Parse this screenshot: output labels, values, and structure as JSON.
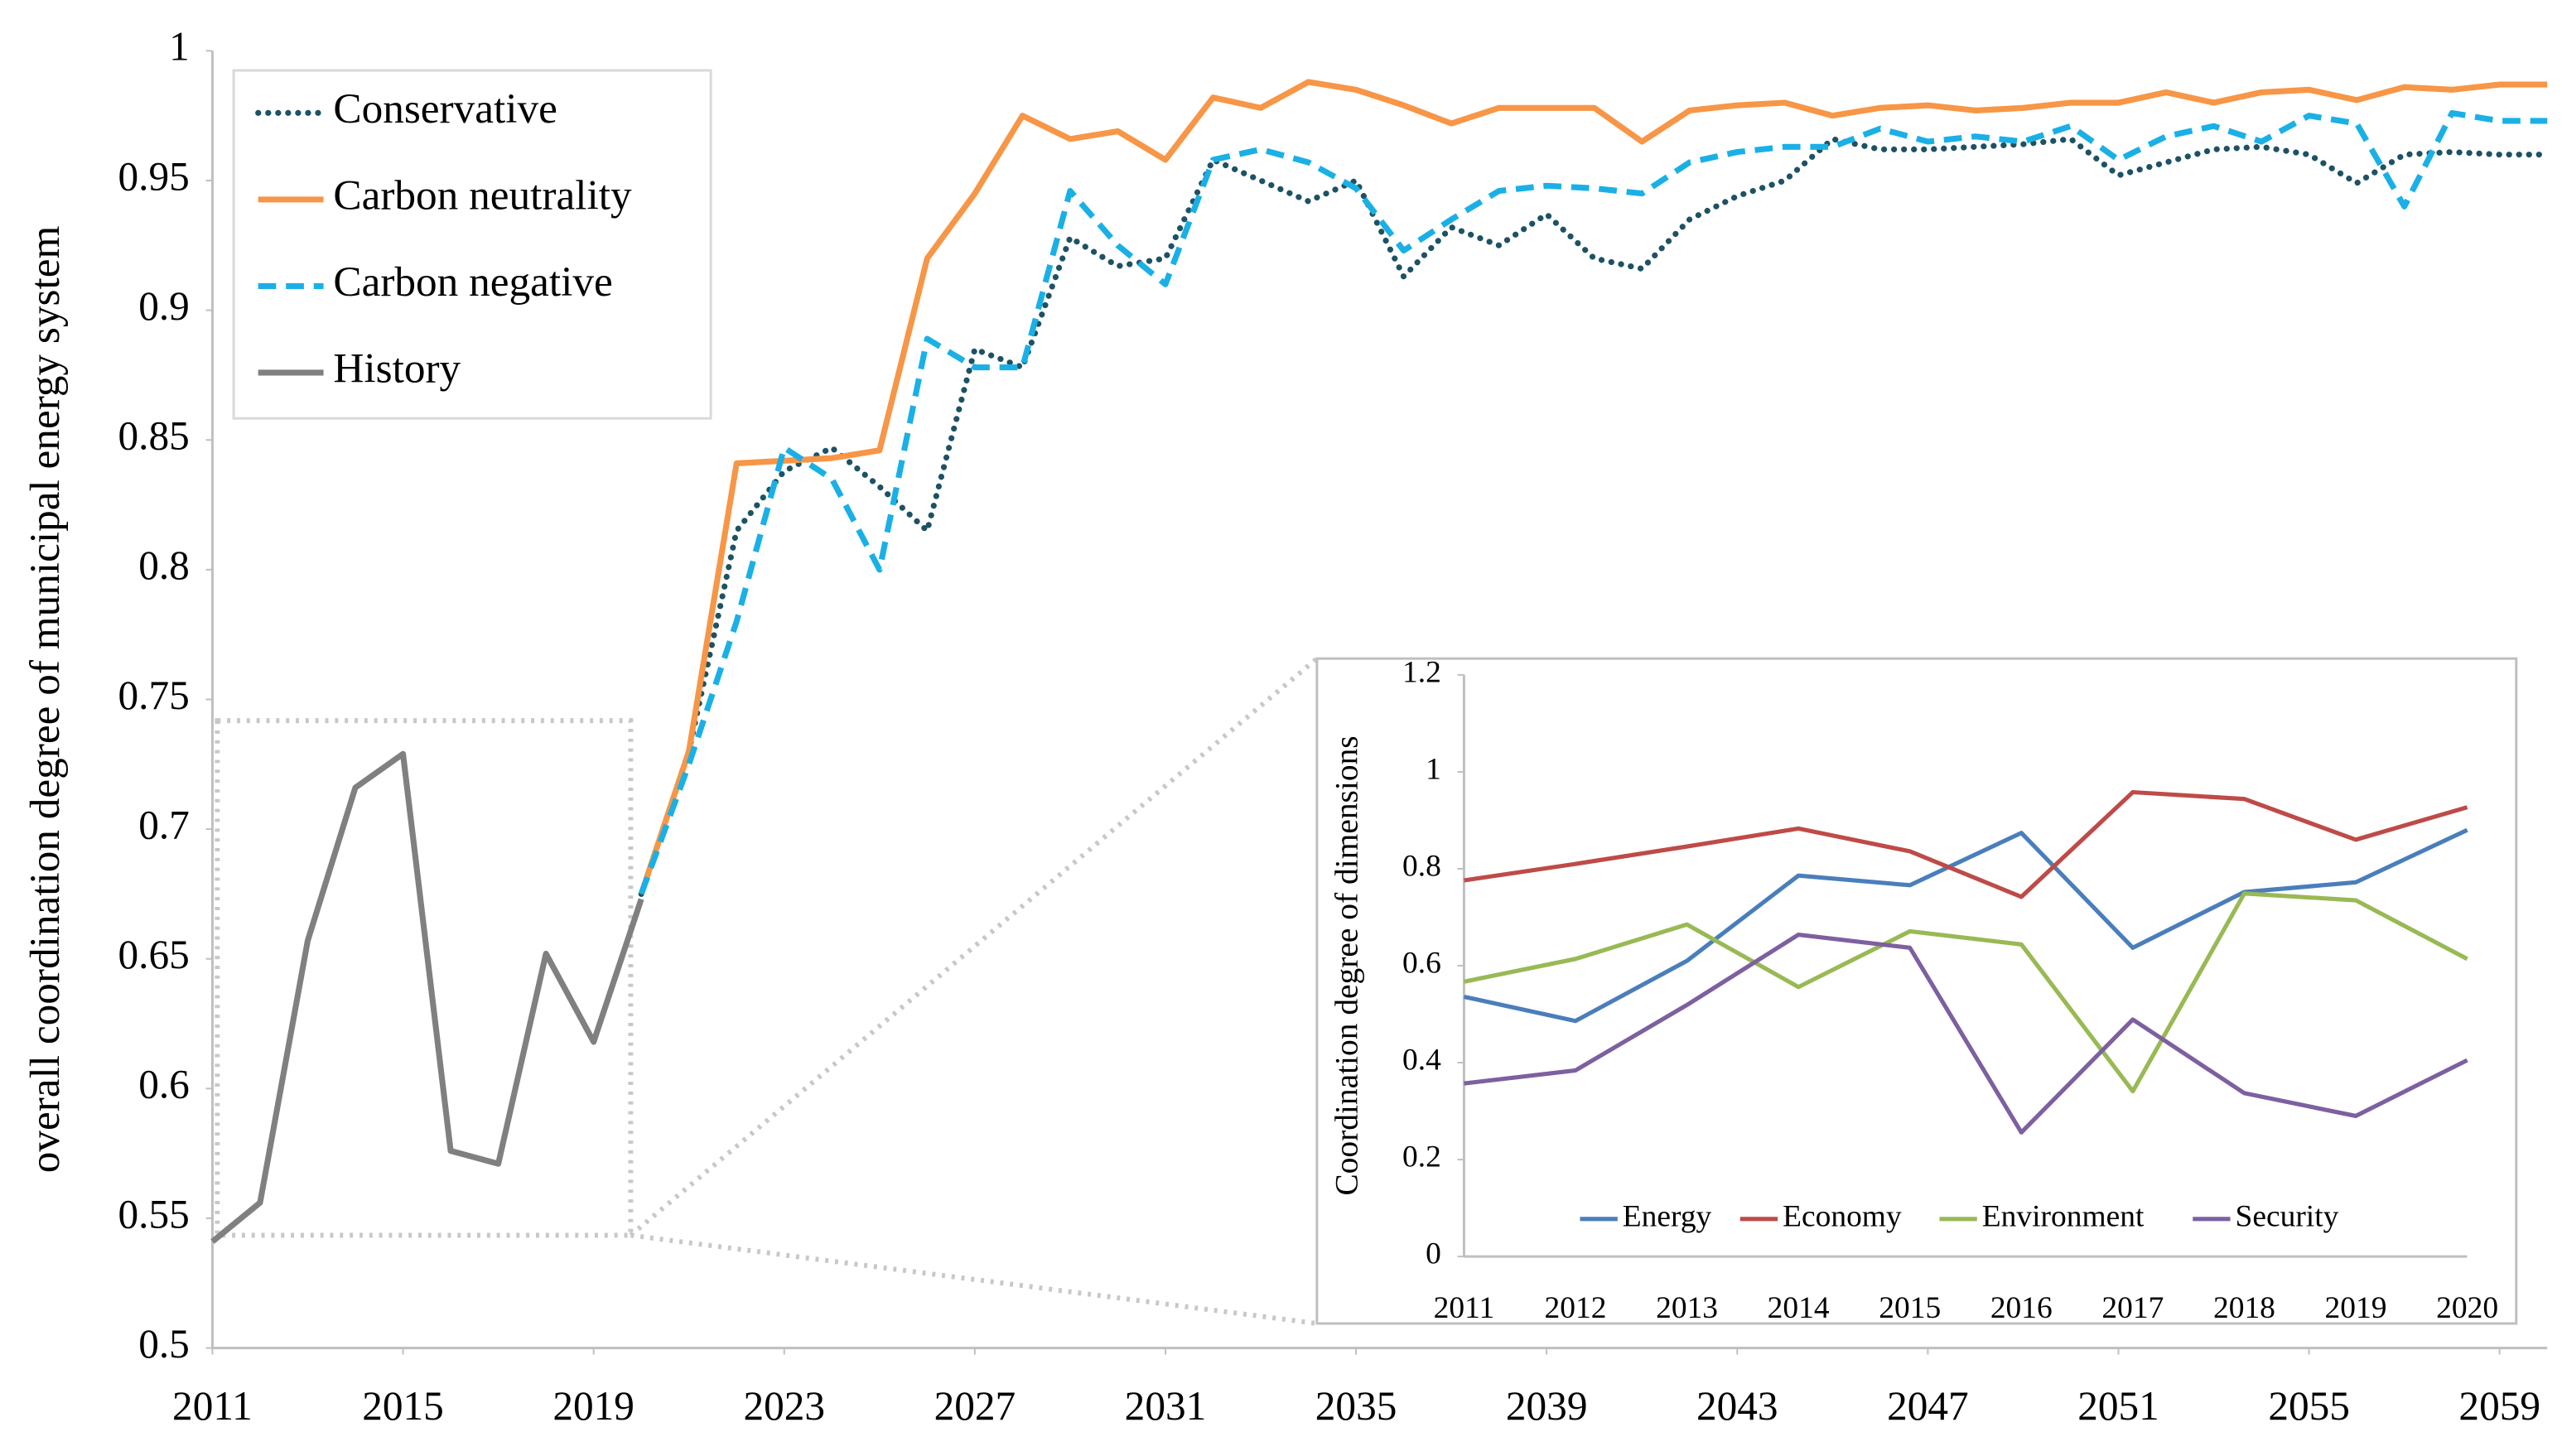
{
  "chart_data": [
    {
      "type": "line",
      "ylabel": "overall coordination degree of municipal energy system",
      "x": [
        2011,
        2012,
        2013,
        2014,
        2015,
        2016,
        2017,
        2018,
        2019,
        2020,
        2021,
        2022,
        2023,
        2024,
        2025,
        2026,
        2027,
        2028,
        2029,
        2030,
        2031,
        2032,
        2033,
        2034,
        2035,
        2036,
        2037,
        2038,
        2039,
        2040,
        2041,
        2042,
        2043,
        2044,
        2045,
        2046,
        2047,
        2048,
        2049,
        2050,
        2051,
        2052,
        2053,
        2054,
        2055,
        2056,
        2057,
        2058,
        2059,
        2060
      ],
      "xlim": [
        2011,
        2060
      ],
      "xticks": [
        2011,
        2015,
        2019,
        2023,
        2027,
        2031,
        2035,
        2039,
        2043,
        2047,
        2051,
        2055,
        2059
      ],
      "ylim": [
        0.5,
        1
      ],
      "yticks": [
        0.5,
        0.55,
        0.6,
        0.65,
        0.7,
        0.75,
        0.8,
        0.85,
        0.9,
        0.95,
        1
      ],
      "grid": false,
      "legend": "top-left",
      "series": [
        {
          "name": "Conservative",
          "color": "#1d5264",
          "style": "dotted",
          "values": [
            null,
            null,
            null,
            null,
            null,
            null,
            null,
            null,
            null,
            0.675,
            0.73,
            0.815,
            0.838,
            0.847,
            0.832,
            0.815,
            0.885,
            0.878,
            0.928,
            0.917,
            0.92,
            0.958,
            0.95,
            0.942,
            0.95,
            0.913,
            0.932,
            0.925,
            0.937,
            0.92,
            0.916,
            0.935,
            0.944,
            0.95,
            0.966,
            0.962,
            0.962,
            0.963,
            0.964,
            0.966,
            0.952,
            0.957,
            0.962,
            0.963,
            0.96,
            0.949,
            0.96,
            0.961,
            0.96,
            0.96
          ]
        },
        {
          "name": "Carbon neutrality",
          "color": "#f79646",
          "style": "solid",
          "values": [
            null,
            null,
            null,
            null,
            null,
            null,
            null,
            null,
            null,
            0.675,
            0.73,
            0.841,
            0.842,
            0.843,
            0.846,
            0.92,
            0.945,
            0.975,
            0.966,
            0.969,
            0.958,
            0.982,
            0.978,
            0.988,
            0.985,
            0.979,
            0.972,
            0.978,
            0.978,
            0.978,
            0.965,
            0.977,
            0.979,
            0.98,
            0.975,
            0.978,
            0.979,
            0.977,
            0.978,
            0.98,
            0.98,
            0.984,
            0.98,
            0.984,
            0.985,
            0.981,
            0.986,
            0.985,
            0.987,
            0.987
          ]
        },
        {
          "name": "Carbon negative",
          "color": "#1ab0e6",
          "style": "dashed",
          "values": [
            null,
            null,
            null,
            null,
            null,
            null,
            null,
            null,
            null,
            0.675,
            0.725,
            0.78,
            0.847,
            0.835,
            0.8,
            0.889,
            0.878,
            0.878,
            0.946,
            0.925,
            0.91,
            0.958,
            0.962,
            0.957,
            0.947,
            0.923,
            0.935,
            0.946,
            0.948,
            0.947,
            0.945,
            0.957,
            0.961,
            0.963,
            0.963,
            0.97,
            0.965,
            0.967,
            0.965,
            0.971,
            0.958,
            0.967,
            0.971,
            0.965,
            0.975,
            0.972,
            0.94,
            0.976,
            0.973,
            0.973
          ]
        },
        {
          "name": "History",
          "color": "#808080",
          "style": "solid",
          "values": [
            0.541,
            0.556,
            0.657,
            0.716,
            0.729,
            0.576,
            0.571,
            0.652,
            0.618,
            0.673,
            null,
            null,
            null,
            null,
            null,
            null,
            null,
            null,
            null,
            null,
            null,
            null,
            null,
            null,
            null,
            null,
            null,
            null,
            null,
            null,
            null,
            null,
            null,
            null,
            null,
            null,
            null,
            null,
            null,
            null,
            null,
            null,
            null,
            null,
            null,
            null,
            null,
            null,
            null,
            null
          ]
        }
      ]
    },
    {
      "type": "line",
      "ylabel": "Coordination degree of dimensions",
      "categories": [
        "2011",
        "2012",
        "2013",
        "2014",
        "2015",
        "2016",
        "2017",
        "2018",
        "2019",
        "2020"
      ],
      "ylim": [
        0,
        1.2
      ],
      "yticks": [
        0,
        0.2,
        0.4,
        0.6,
        0.8,
        1,
        1.2
      ],
      "grid": false,
      "legend": "bottom",
      "series": [
        {
          "name": "Energy",
          "color": "#4a7ebb",
          "style": "solid",
          "values": [
            0.536,
            0.486,
            0.61,
            0.786,
            0.766,
            0.874,
            0.637,
            0.752,
            0.772,
            0.88
          ]
        },
        {
          "name": "Economy",
          "color": "#be4b48",
          "style": "solid",
          "values": [
            0.776,
            0.81,
            0.846,
            0.883,
            0.836,
            0.742,
            0.958,
            0.944,
            0.86,
            0.927
          ]
        },
        {
          "name": "Environment",
          "color": "#98b954",
          "style": "solid",
          "values": [
            0.567,
            0.614,
            0.685,
            0.556,
            0.671,
            0.644,
            0.341,
            0.749,
            0.735,
            0.614
          ]
        },
        {
          "name": "Security",
          "color": "#7d60a0",
          "style": "solid",
          "values": [
            0.357,
            0.384,
            0.519,
            0.664,
            0.637,
            0.256,
            0.489,
            0.337,
            0.29,
            0.405
          ]
        }
      ]
    }
  ]
}
